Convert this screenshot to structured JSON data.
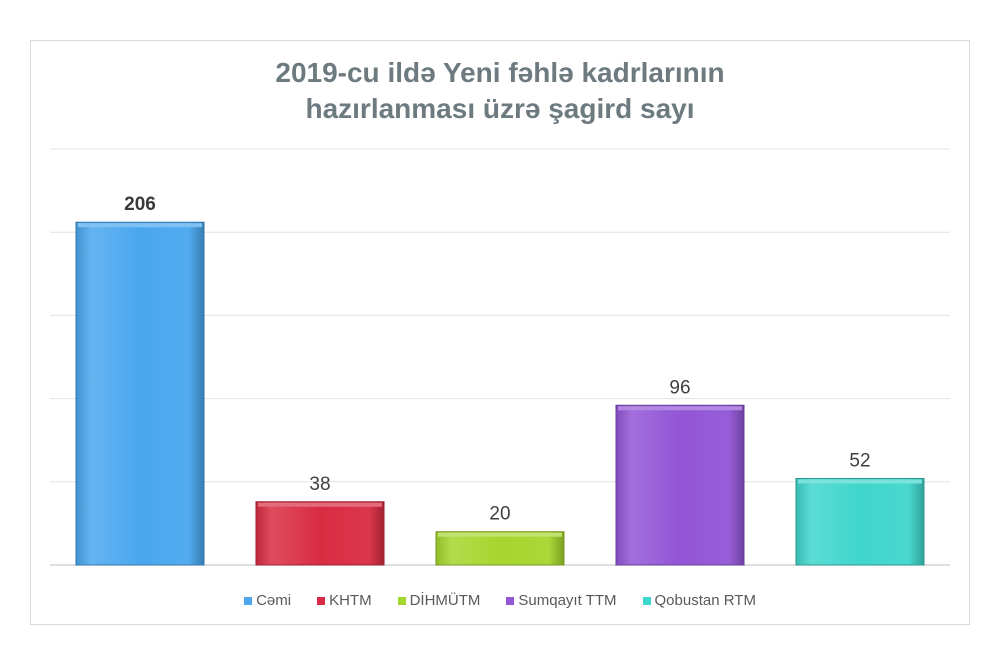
{
  "chart_data": {
    "type": "bar",
    "title_lines": [
      "2019-cu ildə Yeni fəhlə kadrlarının",
      "hazırlanması üzrə şagird sayı"
    ],
    "categories": [
      "Cəmi",
      "KHTM",
      "DİHMÜTM",
      "Sumqayıt TTM",
      "Qobustan RTM"
    ],
    "values": [
      206,
      38,
      20,
      96,
      52
    ],
    "data_labels": [
      "206",
      "38",
      "20",
      "96",
      "52"
    ],
    "label_bold": [
      true,
      false,
      false,
      false,
      false
    ],
    "colors": [
      "#4aa7ee",
      "#d92c43",
      "#a6d62e",
      "#9255d6",
      "#3fd6cc"
    ],
    "ylim": [
      0,
      250
    ],
    "grid": true,
    "legend_position": "bottom"
  }
}
